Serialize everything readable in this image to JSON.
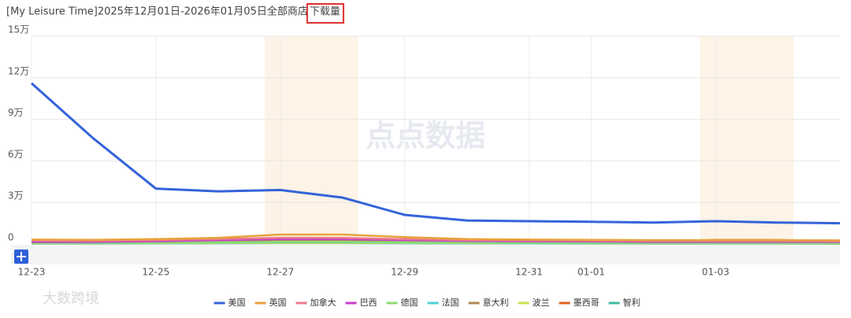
{
  "chart_data": {
    "type": "line",
    "title": "[My Leisure Time]2025年12月01日-2026年01月05日全部商店",
    "metric": "下载量",
    "watermarks": [
      "点点数据",
      "大数跨境"
    ],
    "categories": [
      "12-23",
      null,
      "12-25",
      null,
      "12-27",
      null,
      "12-29",
      null,
      "12-31",
      "01-01",
      null,
      "01-03",
      null,
      null
    ],
    "highlight_bands": [
      [
        4,
        5
      ],
      [
        11,
        12
      ]
    ],
    "ylim": [
      0,
      150000
    ],
    "yticks": [
      0,
      {
        "value": 30000,
        "label": "3万"
      },
      {
        "value": 60000,
        "label": "6万"
      },
      {
        "value": 90000,
        "label": "9万"
      },
      {
        "value": 120000,
        "label": "12万"
      },
      {
        "value": 150000,
        "label": "15万"
      }
    ],
    "grid": true,
    "legend": "bottom",
    "series": [
      {
        "name": "美国",
        "color": "#3563d9",
        "values": [
          116000,
          76000,
          40000,
          38000,
          39000,
          33500,
          21000,
          17000,
          16500,
          16000,
          15500,
          16500,
          15500,
          15000
        ]
      },
      {
        "name": "英国",
        "color": "#e9a23b",
        "values": [
          3200,
          3000,
          3500,
          4500,
          6800,
          6800,
          5000,
          3600,
          3200,
          3000,
          2800,
          2800,
          2800,
          2600
        ]
      },
      {
        "name": "加拿大",
        "color": "#e87b8c",
        "values": [
          2500,
          2300,
          2800,
          3500,
          4500,
          4400,
          3500,
          2800,
          2600,
          2400,
          2200,
          2200,
          2200,
          2000
        ]
      },
      {
        "name": "巴西",
        "color": "#c63dcc",
        "values": [
          1500,
          1500,
          2000,
          2800,
          3600,
          3600,
          2800,
          2200,
          2000,
          1800,
          1600,
          1600,
          1600,
          1500
        ]
      },
      {
        "name": "德国",
        "color": "#8bd874",
        "values": [
          800,
          900,
          1100,
          1300,
          1500,
          1500,
          1300,
          1100,
          1000,
          900,
          800,
          800,
          800,
          700
        ]
      },
      {
        "name": "法国",
        "color": "#52cfd8",
        "values": [
          700,
          700,
          900,
          1100,
          1300,
          1300,
          1100,
          900,
          800,
          700,
          700,
          700,
          700,
          600
        ]
      },
      {
        "name": "意大利",
        "color": "#b08852",
        "values": [
          1800,
          1700,
          2000,
          2400,
          2800,
          2800,
          2400,
          2100,
          2000,
          1900,
          1800,
          3000,
          2900,
          2000
        ]
      },
      {
        "name": "波兰",
        "color": "#cde052",
        "values": [
          500,
          500,
          600,
          700,
          800,
          800,
          700,
          600,
          600,
          500,
          500,
          500,
          500,
          400
        ]
      },
      {
        "name": "墨西哥",
        "color": "#e0621f",
        "values": [
          600,
          600,
          700,
          900,
          1100,
          1100,
          900,
          800,
          700,
          700,
          600,
          600,
          600,
          500
        ]
      },
      {
        "name": "智利",
        "color": "#41b8a0",
        "values": [
          300,
          300,
          400,
          500,
          600,
          600,
          500,
          400,
          400,
          300,
          300,
          300,
          300,
          200
        ]
      }
    ]
  }
}
